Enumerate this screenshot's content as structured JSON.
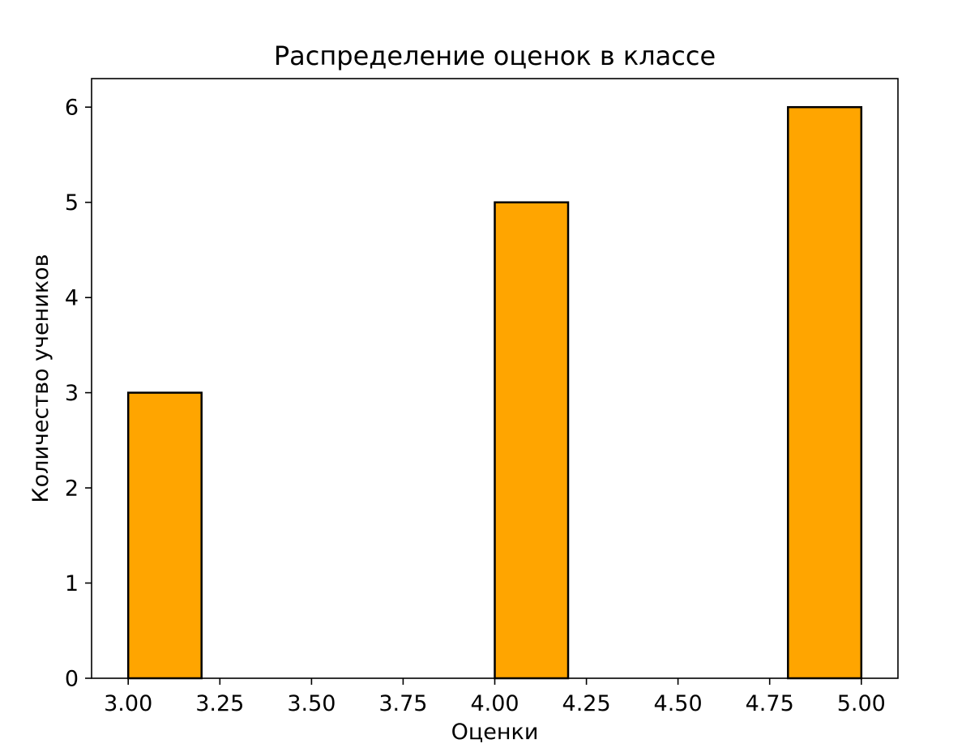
{
  "chart_data": {
    "type": "bar",
    "title": "Распределение оценок в классе",
    "xlabel": "Оценки",
    "ylabel": "Количество учеников",
    "bars": [
      {
        "x_start": 3.0,
        "x_end": 3.2,
        "value": 3
      },
      {
        "x_start": 4.0,
        "x_end": 4.2,
        "value": 5
      },
      {
        "x_start": 4.8,
        "x_end": 5.0,
        "value": 6
      }
    ],
    "xlim": [
      2.9,
      5.1
    ],
    "ylim": [
      0,
      6.3
    ],
    "xticks": [
      3.0,
      3.25,
      3.5,
      3.75,
      4.0,
      4.25,
      4.5,
      4.75,
      5.0
    ],
    "xtick_labels": [
      "3.00",
      "3.25",
      "3.50",
      "3.75",
      "4.00",
      "4.25",
      "4.50",
      "4.75",
      "5.00"
    ],
    "yticks": [
      0,
      1,
      2,
      3,
      4,
      5,
      6
    ],
    "ytick_labels": [
      "0",
      "1",
      "2",
      "3",
      "4",
      "5",
      "6"
    ],
    "bar_color": "#FFA500",
    "bar_edge_color": "#000000",
    "axis_color": "#000000",
    "background_color": "#FFFFFF",
    "grid": false,
    "legend": null
  }
}
